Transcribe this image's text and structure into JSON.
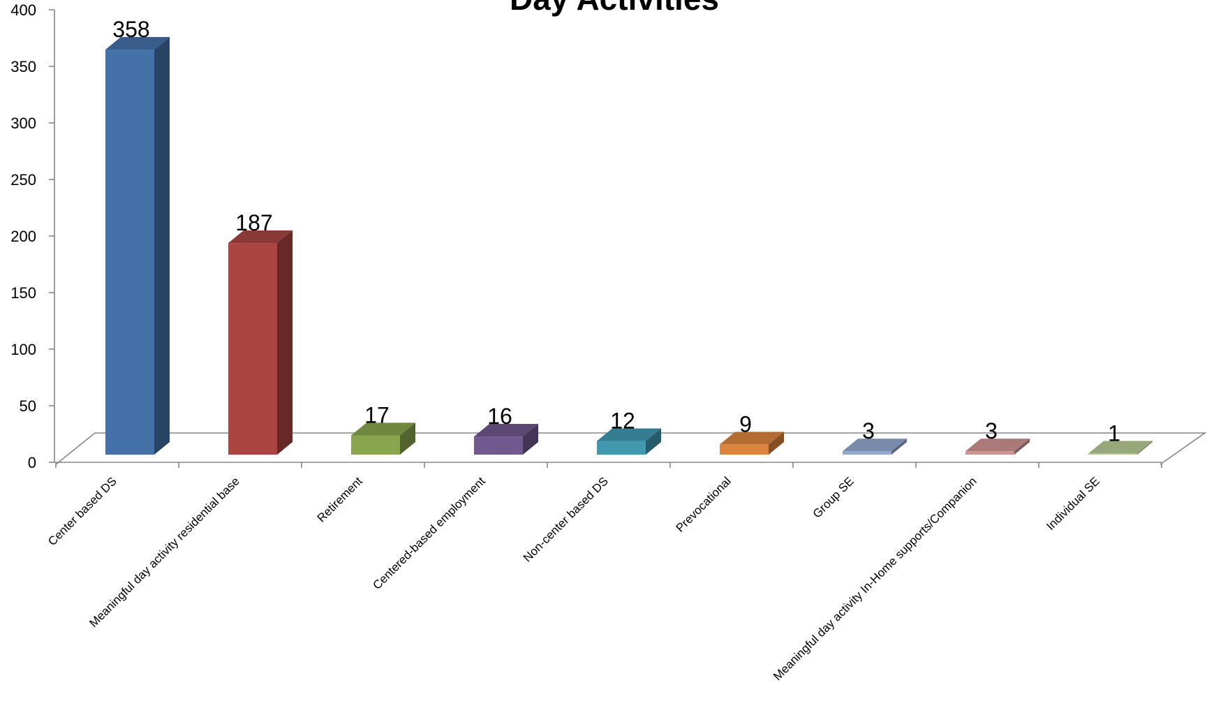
{
  "chart_data": {
    "type": "bar",
    "title": "Day Activities",
    "xlabel": "",
    "ylabel": "",
    "ylim": [
      0,
      400
    ],
    "yticks": [
      0,
      50,
      100,
      150,
      200,
      250,
      300,
      350,
      400
    ],
    "grid": false,
    "legend": "none",
    "style": "3d-column",
    "categories": [
      "Center based DS",
      "Meaningful day activity residential base",
      "Retirement",
      "Centered-based employment",
      "Non-center based DS",
      "Prevocational",
      "Group SE",
      "Meaningful day activity In-Home supports/Companion",
      "Individual SE"
    ],
    "values": [
      358,
      187,
      17,
      16,
      12,
      9,
      3,
      3,
      1
    ],
    "colors": [
      "#4472a8",
      "#aa4542",
      "#89a54e",
      "#71588f",
      "#4198af",
      "#db843d",
      "#93a9cf",
      "#d19392",
      "#b9cd96"
    ]
  }
}
